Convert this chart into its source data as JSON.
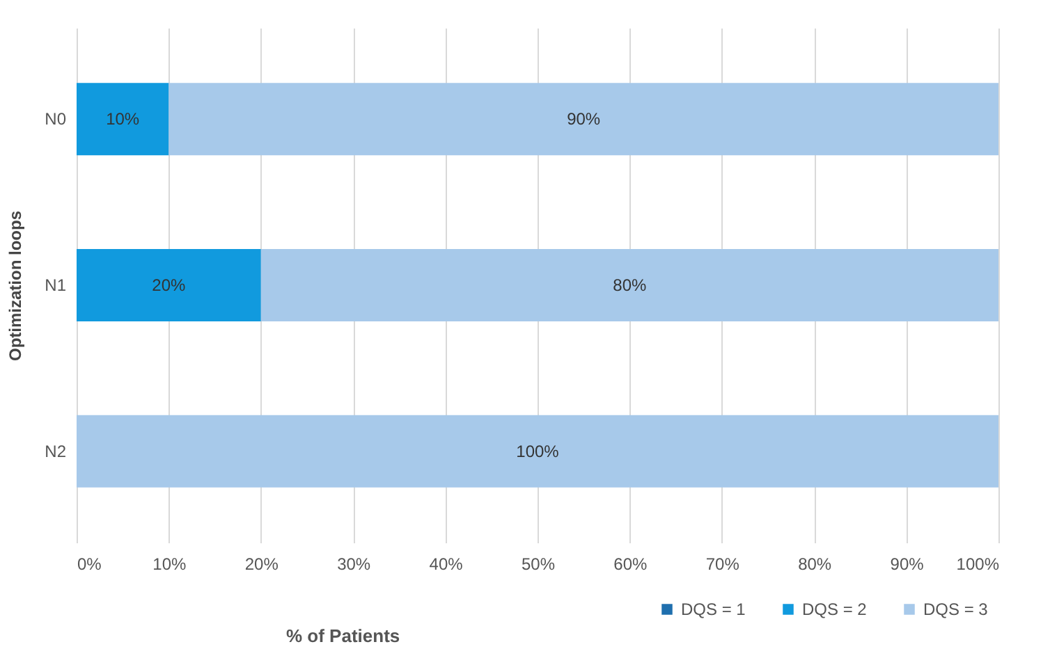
{
  "chart_data": {
    "type": "bar",
    "orientation": "horizontal",
    "stacked": true,
    "xlabel": "% of Patients",
    "ylabel": "Optimization loops",
    "categories": [
      "N0",
      "N1",
      "N2"
    ],
    "series": [
      {
        "name": "DQS = 1",
        "color": "#1f6fae",
        "values": [
          null,
          null,
          null
        ]
      },
      {
        "name": "DQS = 2",
        "color": "#119ade",
        "values": [
          10,
          20,
          null
        ],
        "value_labels": [
          "10%",
          "20%",
          null
        ]
      },
      {
        "name": "DQS = 3",
        "color": "#a7c9ea",
        "values": [
          90,
          80,
          100
        ],
        "value_labels": [
          "90%",
          "80%",
          "100%"
        ]
      }
    ],
    "xlim": [
      0,
      100
    ],
    "xticks": [
      {
        "value": 0,
        "label": "0%"
      },
      {
        "value": 10,
        "label": "10%"
      },
      {
        "value": 20,
        "label": "20%"
      },
      {
        "value": 30,
        "label": "30%"
      },
      {
        "value": 40,
        "label": "40%"
      },
      {
        "value": 50,
        "label": "50%"
      },
      {
        "value": 60,
        "label": "60%"
      },
      {
        "value": 70,
        "label": "70%"
      },
      {
        "value": 80,
        "label": "80%"
      },
      {
        "value": 90,
        "label": "90%"
      },
      {
        "value": 100,
        "label": "100%"
      }
    ],
    "grid": "x",
    "legend": "bottom right"
  }
}
